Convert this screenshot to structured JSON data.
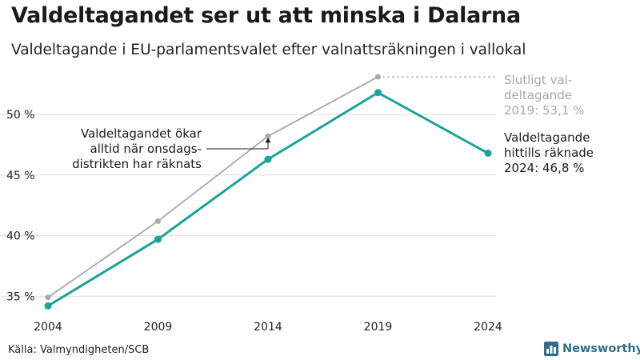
{
  "header": {
    "title": "Valdeltagandet ser ut att minska i Dalarna",
    "subtitle": "Valdeltagande i EU-parlamentsvalet efter valnattsräkningen i vallokal"
  },
  "footer": {
    "source": "Källa: Valmyndigheten/SCB",
    "logo_text": "Newsworthy",
    "logo_icon": "bar-chart-icon"
  },
  "colors": {
    "primary": "#1aa39a",
    "secondary": "#a8a8a8",
    "grid": "#dcdcdc",
    "text": "#1a1a1a",
    "brand": "#2f6e8a"
  },
  "chart_data": {
    "type": "line",
    "x": [
      2004,
      2009,
      2014,
      2019,
      2024
    ],
    "ylim": [
      33.5,
      53.5
    ],
    "yticks": [
      35,
      40,
      45,
      50
    ],
    "ytick_labels": [
      "35 %",
      "40 %",
      "45 %",
      "50 %"
    ],
    "xtick_labels": [
      "2004",
      "2009",
      "2014",
      "2019",
      "2024"
    ],
    "grid": true,
    "series": [
      {
        "key": "final",
        "values": [
          34.9,
          41.2,
          48.2,
          53.1,
          null
        ],
        "color": "#a8a8a8"
      },
      {
        "key": "election_night",
        "values": [
          34.2,
          39.7,
          46.3,
          51.8,
          46.8
        ],
        "color": "#1aa39a"
      }
    ],
    "annotations": [
      {
        "key": "final_2019",
        "lines": [
          "Slutligt val-",
          "deltagande",
          "2019: 53,1 %"
        ],
        "color": "#a8a8a8"
      },
      {
        "key": "counted_2024",
        "lines": [
          "Valdeltagande",
          "hittills räknade",
          "2024: 46,8 %"
        ],
        "color": "#1a1a1a"
      },
      {
        "key": "wednesday_note",
        "lines": [
          "Valdeltagandet ökar",
          "alltid när onsdags-",
          "distrikten har räknats"
        ],
        "color": "#1a1a1a"
      }
    ]
  }
}
